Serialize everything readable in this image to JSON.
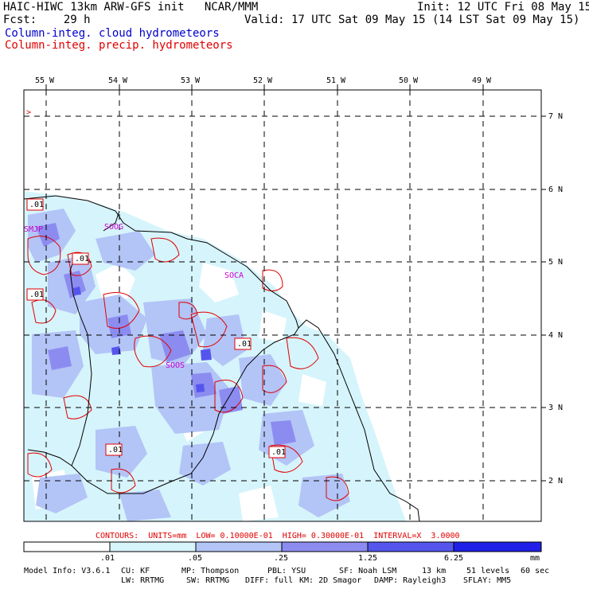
{
  "header": {
    "title": "HAIC-HIWC 13km ARW-GFS init   NCAR/MMM",
    "init": "Init: 12 UTC Fri 08 May 15",
    "fcst": "Fcst:    29 h",
    "valid": "Valid: 17 UTC Sat 09 May 15 (14 LST Sat 09 May 15)",
    "field_cloud": "Column-integ. cloud hydrometeors",
    "field_precip": "Column-integ. precip. hydrometeors"
  },
  "colors": {
    "cloud_text": "#0000cc",
    "precip_text": "#e00000",
    "station": "#cc00cc",
    "contour": "#e00000",
    "fill_levels": [
      "#ffffff",
      "#d6f4fb",
      "#b3c4f7",
      "#8c8cf0",
      "#5555ee",
      "#2020e8"
    ]
  },
  "map": {
    "lon_labels": [
      "55 W",
      "54 W",
      "53 W",
      "52 W",
      "51 W",
      "50 W",
      "49 W"
    ],
    "lat_labels": [
      "7 N",
      "6 N",
      "5 N",
      "4 N",
      "3 N",
      "2 N"
    ],
    "stations": [
      "SMJP",
      "SOCA",
      "SOOG",
      "SOOS"
    ],
    "contour_labels": [
      ".01",
      ".01",
      ".01",
      ".01",
      ".01",
      ".01"
    ]
  },
  "contour_info": "CONTOURS:  UNITS=mm  LOW= 0.10000E-01  HIGH= 0.30000E-01  INTERVAL=X  3.0000",
  "colorbar": {
    "ticks": [
      ".01",
      ".05",
      ".25",
      "1.25",
      "6.25"
    ],
    "units": "mm"
  },
  "footer": {
    "line1": [
      "Model Info: V3.6.1",
      "CU: KF",
      "MP: Thompson",
      "PBL: YSU",
      "SF: Noah LSM",
      "13 km",
      "51 levels",
      "60 sec"
    ],
    "line2": [
      "LW: RRTMG",
      "SW: RRTMG",
      "DIFF: full",
      "KM: 2D Smagor",
      "DAMP: Rayleigh3",
      "SFLAY: MM5"
    ]
  }
}
